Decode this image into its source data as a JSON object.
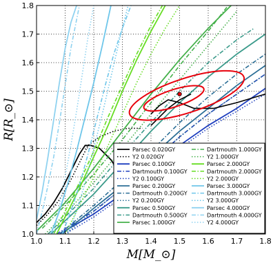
{
  "chart_data": {
    "type": "line",
    "title": "",
    "xlabel": "M[M_⊙]",
    "ylabel": "R[R_⊙]",
    "xlim": [
      1.0,
      1.8
    ],
    "ylim": [
      1.0,
      1.8
    ],
    "xticks": [
      "1.0",
      "1.1",
      "1.2",
      "1.3",
      "1.4",
      "1.5",
      "1.6",
      "1.7",
      "1.8"
    ],
    "yticks": [
      "1.0",
      "1.1",
      "1.2",
      "1.3",
      "1.4",
      "1.5",
      "1.6",
      "1.7",
      "1.8"
    ],
    "grid": true,
    "legend_placement": "lower-right",
    "series": [
      {
        "name": "Parsec 0.020GY",
        "color": "#000000",
        "style": "solid",
        "x": [
          1.0,
          1.03,
          1.06,
          1.09,
          1.12,
          1.15,
          1.17,
          1.19,
          1.22,
          1.26,
          1.3,
          1.33,
          1.35
        ],
        "y": [
          1.04,
          1.07,
          1.11,
          1.16,
          1.22,
          1.28,
          1.31,
          1.31,
          1.3,
          1.26,
          1.2,
          1.15,
          1.12
        ]
      },
      {
        "name": "Y2 0.020GY",
        "color": "#000000",
        "style": "dotted",
        "x": [
          1.0,
          1.04,
          1.08,
          1.12,
          1.16,
          1.18,
          1.22,
          1.27,
          1.32,
          1.37
        ],
        "y": [
          1.03,
          1.07,
          1.12,
          1.19,
          1.27,
          1.31,
          1.34,
          1.36,
          1.37,
          1.37
        ]
      },
      {
        "name": "Parsec 0.100GY",
        "color": "#1f3fbf",
        "style": "solid",
        "x": [
          1.08,
          1.2,
          1.3,
          1.4,
          1.5,
          1.6,
          1.7,
          1.8
        ],
        "y": [
          1.0,
          1.07,
          1.14,
          1.22,
          1.31,
          1.38,
          1.44,
          1.51
        ]
      },
      {
        "name": "Dartmouth 0.100GY",
        "color": "#1f3fbf",
        "style": "dashdot",
        "x": [
          1.07,
          1.2,
          1.3,
          1.4,
          1.5,
          1.6,
          1.7,
          1.8
        ],
        "y": [
          1.0,
          1.08,
          1.16,
          1.25,
          1.34,
          1.42,
          1.49,
          1.56
        ]
      },
      {
        "name": "Y2 0.100GY",
        "color": "#1f3fbf",
        "style": "dotted",
        "x": [
          1.1,
          1.2,
          1.3,
          1.4,
          1.5,
          1.6,
          1.7,
          1.8
        ],
        "y": [
          1.0,
          1.06,
          1.13,
          1.21,
          1.3,
          1.37,
          1.43,
          1.49
        ]
      },
      {
        "name": "Parsec 0.200GY",
        "color": "#2b6e96",
        "style": "solid",
        "x": [
          1.09,
          1.2,
          1.3,
          1.4,
          1.5,
          1.6,
          1.7,
          1.8
        ],
        "y": [
          1.0,
          1.09,
          1.17,
          1.27,
          1.36,
          1.44,
          1.52,
          1.59
        ]
      },
      {
        "name": "Dartmouth 0.200GY",
        "color": "#2b6e96",
        "style": "dashdot",
        "x": [
          1.08,
          1.2,
          1.3,
          1.4,
          1.5,
          1.6,
          1.7,
          1.8
        ],
        "y": [
          1.0,
          1.1,
          1.19,
          1.29,
          1.39,
          1.48,
          1.56,
          1.63
        ]
      },
      {
        "name": "Y2 0.200GY",
        "color": "#2b6e96",
        "style": "dotted",
        "x": [
          1.1,
          1.2,
          1.3,
          1.4,
          1.5,
          1.6,
          1.7,
          1.8
        ],
        "y": [
          1.0,
          1.08,
          1.16,
          1.25,
          1.34,
          1.42,
          1.49,
          1.56
        ]
      },
      {
        "name": "Parsec 0.500GY",
        "color": "#3a9a8a",
        "style": "solid",
        "x": [
          1.05,
          1.2,
          1.3,
          1.4,
          1.5,
          1.6,
          1.7,
          1.8
        ],
        "y": [
          1.0,
          1.14,
          1.25,
          1.36,
          1.46,
          1.55,
          1.63,
          1.7
        ]
      },
      {
        "name": "Dartmouth 0.500GY",
        "color": "#3a9a8a",
        "style": "dashdot",
        "x": [
          1.04,
          1.2,
          1.3,
          1.4,
          1.5,
          1.6,
          1.7,
          1.76
        ],
        "y": [
          1.0,
          1.16,
          1.28,
          1.39,
          1.5,
          1.6,
          1.68,
          1.72
        ]
      },
      {
        "name": "Parsec 1.000GY",
        "color": "#44b04a",
        "style": "solid",
        "x": [
          1.0,
          1.1,
          1.2,
          1.3,
          1.4,
          1.5,
          1.6,
          1.68
        ],
        "y": [
          1.01,
          1.11,
          1.23,
          1.36,
          1.49,
          1.61,
          1.72,
          1.8
        ]
      },
      {
        "name": "Dartmouth 1.000GY",
        "color": "#44b04a",
        "style": "dashdot",
        "x": [
          1.02,
          1.1,
          1.2,
          1.3,
          1.4,
          1.5,
          1.6,
          1.67
        ],
        "y": [
          1.02,
          1.1,
          1.21,
          1.33,
          1.46,
          1.59,
          1.71,
          1.8
        ]
      },
      {
        "name": "Y2 1.000GY",
        "color": "#44b04a",
        "style": "dotted",
        "x": [
          1.03,
          1.1,
          1.2,
          1.3,
          1.4,
          1.5,
          1.6,
          1.7
        ],
        "y": [
          1.0,
          1.07,
          1.18,
          1.3,
          1.42,
          1.54,
          1.66,
          1.78
        ]
      },
      {
        "name": "Parsec 2.000GY",
        "color": "#66dd22",
        "style": "solid",
        "x": [
          1.07,
          1.1,
          1.15,
          1.2,
          1.25,
          1.3,
          1.35,
          1.4,
          1.45
        ],
        "y": [
          1.0,
          1.06,
          1.16,
          1.27,
          1.38,
          1.5,
          1.61,
          1.71,
          1.8
        ]
      },
      {
        "name": "Dartmouth 2.000GY",
        "color": "#66dd22",
        "style": "dashdot",
        "x": [
          1.06,
          1.1,
          1.15,
          1.2,
          1.25,
          1.3,
          1.35,
          1.4,
          1.44
        ],
        "y": [
          1.0,
          1.08,
          1.18,
          1.29,
          1.41,
          1.52,
          1.63,
          1.73,
          1.8
        ]
      },
      {
        "name": "Y2 2.000GY",
        "color": "#66dd22",
        "style": "dotted",
        "x": [
          1.1,
          1.15,
          1.2,
          1.25,
          1.3,
          1.35,
          1.4,
          1.45,
          1.5
        ],
        "y": [
          1.0,
          1.1,
          1.2,
          1.31,
          1.42,
          1.53,
          1.63,
          1.72,
          1.8
        ]
      },
      {
        "name": "Parsec 3.000GY",
        "color": "#6ec6ea",
        "style": "solid",
        "x": [
          1.05,
          1.08,
          1.11,
          1.14,
          1.17,
          1.2,
          1.23,
          1.26
        ],
        "y": [
          1.0,
          1.08,
          1.18,
          1.29,
          1.41,
          1.53,
          1.66,
          1.8
        ]
      },
      {
        "name": "Dartmouth 3.000GY",
        "color": "#6ec6ea",
        "style": "dashdot",
        "x": [
          1.09,
          1.12,
          1.15,
          1.18,
          1.21,
          1.24,
          1.27,
          1.3,
          1.33
        ],
        "y": [
          1.0,
          1.08,
          1.17,
          1.28,
          1.4,
          1.52,
          1.63,
          1.72,
          1.8
        ]
      },
      {
        "name": "Y2 3.000GY",
        "color": "#6ec6ea",
        "style": "dotted",
        "x": [
          1.11,
          1.14,
          1.17,
          1.2,
          1.23,
          1.26,
          1.29,
          1.32
        ],
        "y": [
          1.0,
          1.08,
          1.18,
          1.3,
          1.42,
          1.55,
          1.68,
          1.8
        ]
      },
      {
        "name": "Parsec 4.000GY",
        "color": "#8fd2f0",
        "style": "solid",
        "x": [
          1.0,
          1.02,
          1.04,
          1.06,
          1.08,
          1.1,
          1.12,
          1.14
        ],
        "y": [
          1.05,
          1.15,
          1.27,
          1.4,
          1.53,
          1.65,
          1.74,
          1.8
        ]
      },
      {
        "name": "Dartmouth 4.000GY",
        "color": "#8fd2f0",
        "style": "dashdot",
        "x": [
          1.0,
          1.02,
          1.04,
          1.06,
          1.08,
          1.1,
          1.12,
          1.15
        ],
        "y": [
          1.0,
          1.08,
          1.17,
          1.27,
          1.39,
          1.52,
          1.65,
          1.8
        ]
      },
      {
        "name": "Y2 4.000GY",
        "color": "#8fd2f0",
        "style": "dotted",
        "x": [
          1.06,
          1.08,
          1.1,
          1.12,
          1.14,
          1.16,
          1.18,
          1.2
        ],
        "y": [
          1.0,
          1.1,
          1.2,
          1.31,
          1.43,
          1.56,
          1.69,
          1.8
        ]
      }
    ],
    "extra_lines": [
      {
        "color": "#000000",
        "x": [
          1.4,
          1.43,
          1.46,
          1.5,
          1.55,
          1.62,
          1.7,
          1.8
        ],
        "y": [
          1.42,
          1.45,
          1.47,
          1.46,
          1.44,
          1.44,
          1.46,
          1.49
        ]
      },
      {
        "color": "#000000",
        "x": [
          1.4,
          1.43,
          1.46,
          1.5,
          1.54
        ],
        "y": [
          1.38,
          1.41,
          1.44,
          1.47,
          1.49
        ]
      }
    ],
    "ellipses": [
      {
        "cx": 1.525,
        "cy": 1.485,
        "rx": 0.21,
        "ry": 0.06,
        "angle_deg": 18,
        "color": "#e8000b"
      },
      {
        "cx": 1.48,
        "cy": 1.475,
        "rx": 0.11,
        "ry": 0.03,
        "angle_deg": 18,
        "color": "#e8000b"
      }
    ],
    "marker": {
      "x": 1.5,
      "y": 1.49,
      "color": "#e8000b"
    }
  }
}
